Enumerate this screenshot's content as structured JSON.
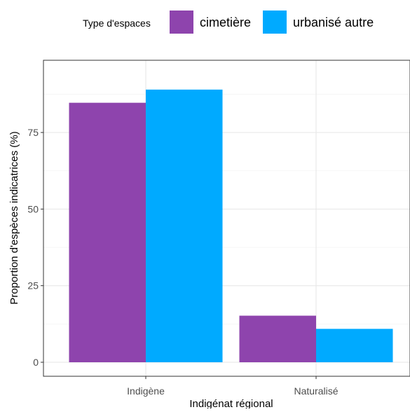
{
  "chart_data": {
    "type": "bar",
    "title": "",
    "xlabel": "Indigénat régional",
    "ylabel": "Proportion d'espèces indicatrices (%)",
    "categories": [
      "Indigène",
      "Naturalisé"
    ],
    "series": [
      {
        "name": "cimetière",
        "color": "#8e44ad",
        "values": [
          84.7,
          15.2
        ]
      },
      {
        "name": "urbanisé autre",
        "color": "#00aaff",
        "values": [
          89.0,
          10.9
        ]
      }
    ],
    "ylim": [
      0,
      94
    ],
    "yticks": [
      "0",
      "25",
      "50",
      "75"
    ],
    "ytick_values": [
      0,
      25,
      50,
      75
    ],
    "grid": true,
    "legend": {
      "title": "Type d'espaces",
      "placement": "top"
    }
  }
}
